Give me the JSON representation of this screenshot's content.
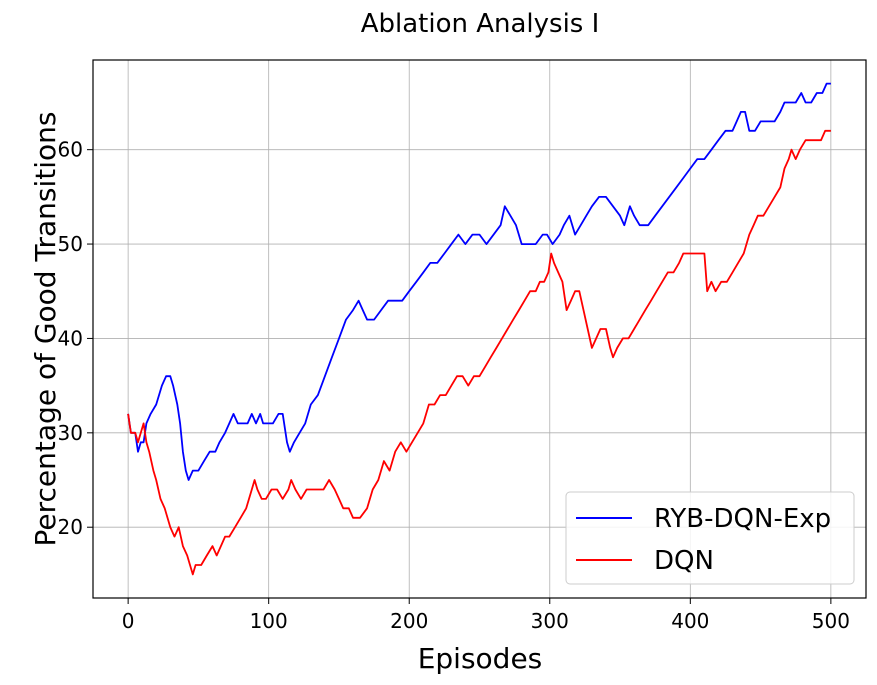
{
  "chart_data": {
    "type": "line",
    "title": "Ablation Analysis I",
    "xlabel": "Episodes",
    "ylabel": "Percentage of Good Transitions",
    "xlim": [
      -25,
      525
    ],
    "ylim": [
      12.5,
      69.5
    ],
    "xticks": [
      0,
      100,
      200,
      300,
      400,
      500
    ],
    "yticks": [
      20,
      30,
      40,
      50,
      60
    ],
    "grid": true,
    "legend_position": "bottom-right",
    "series": [
      {
        "name": "RYB-DQN-Exp",
        "color": "#0000ff",
        "points": [
          [
            0,
            32
          ],
          [
            2,
            30
          ],
          [
            5,
            30
          ],
          [
            7,
            28
          ],
          [
            9,
            29
          ],
          [
            11,
            29
          ],
          [
            13,
            31
          ],
          [
            16,
            32
          ],
          [
            20,
            33
          ],
          [
            24,
            35
          ],
          [
            27,
            36
          ],
          [
            30,
            36
          ],
          [
            32,
            35
          ],
          [
            35,
            33
          ],
          [
            37,
            31
          ],
          [
            39,
            28
          ],
          [
            41,
            26
          ],
          [
            43,
            25
          ],
          [
            46,
            26
          ],
          [
            50,
            26
          ],
          [
            54,
            27
          ],
          [
            58,
            28
          ],
          [
            62,
            28
          ],
          [
            65,
            29
          ],
          [
            69,
            30
          ],
          [
            72,
            31
          ],
          [
            75,
            32
          ],
          [
            78,
            31
          ],
          [
            81,
            31
          ],
          [
            85,
            31
          ],
          [
            88,
            32
          ],
          [
            91,
            31
          ],
          [
            94,
            32
          ],
          [
            96,
            31
          ],
          [
            99,
            31
          ],
          [
            103,
            31
          ],
          [
            107,
            32
          ],
          [
            110,
            32
          ],
          [
            113,
            29
          ],
          [
            115,
            28
          ],
          [
            118,
            29
          ],
          [
            122,
            30
          ],
          [
            126,
            31
          ],
          [
            130,
            33
          ],
          [
            135,
            34
          ],
          [
            140,
            36
          ],
          [
            145,
            38
          ],
          [
            150,
            40
          ],
          [
            155,
            42
          ],
          [
            160,
            43
          ],
          [
            164,
            44
          ],
          [
            167,
            43
          ],
          [
            170,
            42
          ],
          [
            175,
            42
          ],
          [
            180,
            43
          ],
          [
            185,
            44
          ],
          [
            190,
            44
          ],
          [
            195,
            44
          ],
          [
            200,
            45
          ],
          [
            205,
            46
          ],
          [
            210,
            47
          ],
          [
            215,
            48
          ],
          [
            220,
            48
          ],
          [
            225,
            49
          ],
          [
            230,
            50
          ],
          [
            235,
            51
          ],
          [
            240,
            50
          ],
          [
            245,
            51
          ],
          [
            250,
            51
          ],
          [
            255,
            50
          ],
          [
            260,
            51
          ],
          [
            265,
            52
          ],
          [
            268,
            54
          ],
          [
            272,
            53
          ],
          [
            276,
            52
          ],
          [
            280,
            50
          ],
          [
            285,
            50
          ],
          [
            290,
            50
          ],
          [
            295,
            51
          ],
          [
            298,
            51
          ],
          [
            302,
            50
          ],
          [
            307,
            51
          ],
          [
            310,
            52
          ],
          [
            314,
            53
          ],
          [
            318,
            51
          ],
          [
            322,
            52
          ],
          [
            326,
            53
          ],
          [
            330,
            54
          ],
          [
            335,
            55
          ],
          [
            340,
            55
          ],
          [
            345,
            54
          ],
          [
            350,
            53
          ],
          [
            353,
            52
          ],
          [
            357,
            54
          ],
          [
            360,
            53
          ],
          [
            364,
            52
          ],
          [
            370,
            52
          ],
          [
            375,
            53
          ],
          [
            380,
            54
          ],
          [
            385,
            55
          ],
          [
            390,
            56
          ],
          [
            395,
            57
          ],
          [
            400,
            58
          ],
          [
            405,
            59
          ],
          [
            410,
            59
          ],
          [
            415,
            60
          ],
          [
            420,
            61
          ],
          [
            425,
            62
          ],
          [
            430,
            62
          ],
          [
            433,
            63
          ],
          [
            436,
            64
          ],
          [
            439,
            64
          ],
          [
            442,
            62
          ],
          [
            446,
            62
          ],
          [
            450,
            63
          ],
          [
            455,
            63
          ],
          [
            460,
            63
          ],
          [
            464,
            64
          ],
          [
            467,
            65
          ],
          [
            470,
            65
          ],
          [
            475,
            65
          ],
          [
            479,
            66
          ],
          [
            482,
            65
          ],
          [
            486,
            65
          ],
          [
            490,
            66
          ],
          [
            494,
            66
          ],
          [
            497,
            67
          ],
          [
            500,
            67
          ]
        ]
      },
      {
        "name": "DQN",
        "color": "#ff0000",
        "points": [
          [
            0,
            32
          ],
          [
            2,
            30
          ],
          [
            5,
            30
          ],
          [
            7,
            29
          ],
          [
            9,
            30
          ],
          [
            11,
            31
          ],
          [
            13,
            29
          ],
          [
            15,
            28
          ],
          [
            18,
            26
          ],
          [
            20,
            25
          ],
          [
            23,
            23
          ],
          [
            26,
            22
          ],
          [
            30,
            20
          ],
          [
            33,
            19
          ],
          [
            36,
            20
          ],
          [
            39,
            18
          ],
          [
            42,
            17
          ],
          [
            44,
            16
          ],
          [
            46,
            15
          ],
          [
            48,
            16
          ],
          [
            52,
            16
          ],
          [
            56,
            17
          ],
          [
            60,
            18
          ],
          [
            63,
            17
          ],
          [
            66,
            18
          ],
          [
            69,
            19
          ],
          [
            72,
            19
          ],
          [
            76,
            20
          ],
          [
            80,
            21
          ],
          [
            84,
            22
          ],
          [
            88,
            24
          ],
          [
            90,
            25
          ],
          [
            92,
            24
          ],
          [
            95,
            23
          ],
          [
            98,
            23
          ],
          [
            102,
            24
          ],
          [
            106,
            24
          ],
          [
            110,
            23
          ],
          [
            114,
            24
          ],
          [
            116,
            25
          ],
          [
            119,
            24
          ],
          [
            123,
            23
          ],
          [
            127,
            24
          ],
          [
            131,
            24
          ],
          [
            135,
            24
          ],
          [
            139,
            24
          ],
          [
            143,
            25
          ],
          [
            147,
            24
          ],
          [
            150,
            23
          ],
          [
            153,
            22
          ],
          [
            157,
            22
          ],
          [
            160,
            21
          ],
          [
            165,
            21
          ],
          [
            170,
            22
          ],
          [
            174,
            24
          ],
          [
            178,
            25
          ],
          [
            182,
            27
          ],
          [
            186,
            26
          ],
          [
            190,
            28
          ],
          [
            194,
            29
          ],
          [
            198,
            28
          ],
          [
            202,
            29
          ],
          [
            206,
            30
          ],
          [
            210,
            31
          ],
          [
            214,
            33
          ],
          [
            218,
            33
          ],
          [
            222,
            34
          ],
          [
            226,
            34
          ],
          [
            230,
            35
          ],
          [
            234,
            36
          ],
          [
            238,
            36
          ],
          [
            242,
            35
          ],
          [
            246,
            36
          ],
          [
            250,
            36
          ],
          [
            254,
            37
          ],
          [
            258,
            38
          ],
          [
            262,
            39
          ],
          [
            266,
            40
          ],
          [
            270,
            41
          ],
          [
            274,
            42
          ],
          [
            278,
            43
          ],
          [
            282,
            44
          ],
          [
            286,
            45
          ],
          [
            290,
            45
          ],
          [
            293,
            46
          ],
          [
            296,
            46
          ],
          [
            299,
            47
          ],
          [
            301,
            49
          ],
          [
            303,
            48
          ],
          [
            306,
            47
          ],
          [
            309,
            46
          ],
          [
            312,
            43
          ],
          [
            315,
            44
          ],
          [
            318,
            45
          ],
          [
            321,
            45
          ],
          [
            324,
            43
          ],
          [
            327,
            41
          ],
          [
            330,
            39
          ],
          [
            333,
            40
          ],
          [
            336,
            41
          ],
          [
            340,
            41
          ],
          [
            343,
            39
          ],
          [
            345,
            38
          ],
          [
            348,
            39
          ],
          [
            352,
            40
          ],
          [
            356,
            40
          ],
          [
            360,
            41
          ],
          [
            364,
            42
          ],
          [
            368,
            43
          ],
          [
            372,
            44
          ],
          [
            376,
            45
          ],
          [
            380,
            46
          ],
          [
            384,
            47
          ],
          [
            388,
            47
          ],
          [
            392,
            48
          ],
          [
            395,
            49
          ],
          [
            400,
            49
          ],
          [
            405,
            49
          ],
          [
            410,
            49
          ],
          [
            412,
            45
          ],
          [
            415,
            46
          ],
          [
            418,
            45
          ],
          [
            422,
            46
          ],
          [
            426,
            46
          ],
          [
            430,
            47
          ],
          [
            434,
            48
          ],
          [
            438,
            49
          ],
          [
            442,
            51
          ],
          [
            445,
            52
          ],
          [
            448,
            53
          ],
          [
            452,
            53
          ],
          [
            456,
            54
          ],
          [
            460,
            55
          ],
          [
            464,
            56
          ],
          [
            467,
            58
          ],
          [
            470,
            59
          ],
          [
            472,
            60
          ],
          [
            475,
            59
          ],
          [
            478,
            60
          ],
          [
            482,
            61
          ],
          [
            486,
            61
          ],
          [
            490,
            61
          ],
          [
            493,
            61
          ],
          [
            496,
            62
          ],
          [
            500,
            62
          ]
        ]
      }
    ]
  }
}
